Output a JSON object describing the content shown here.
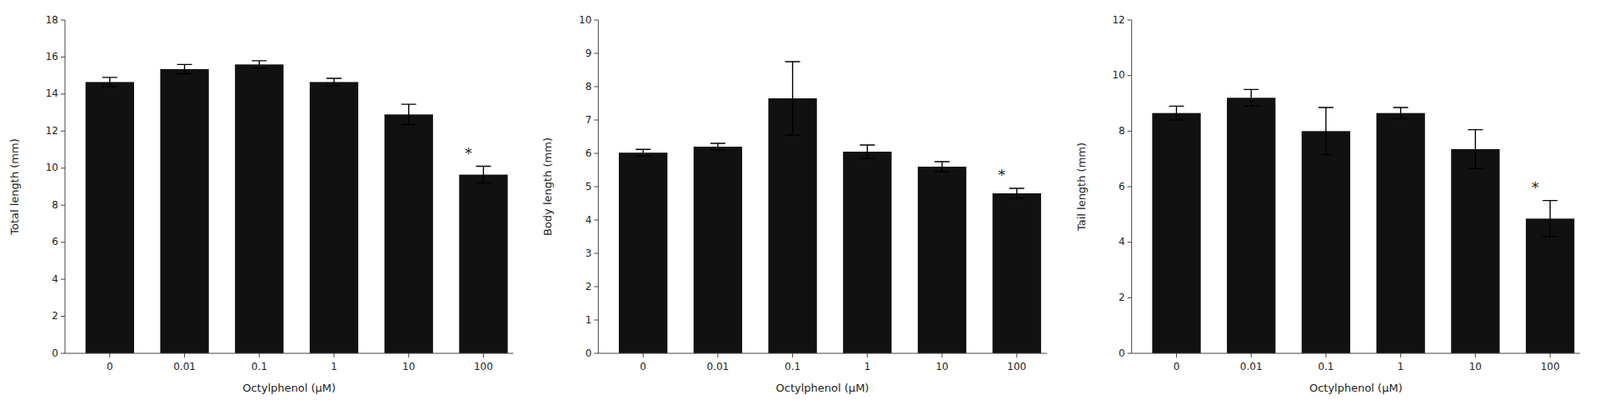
{
  "chart_data": [
    {
      "type": "bar",
      "categories": [
        "0",
        "0.01",
        "0.1",
        "1",
        "10",
        "100"
      ],
      "xlabel": "Octylphenol (μM)",
      "ylabel": "Total length (mm)",
      "color": "#111111",
      "values": [
        14.65,
        15.35,
        15.6,
        14.65,
        12.9,
        9.65
      ],
      "errors": [
        0.25,
        0.25,
        0.2,
        0.2,
        0.55,
        0.45
      ],
      "ylim": [
        0,
        18
      ],
      "yticks": [
        0,
        2,
        4,
        6,
        8,
        10,
        12,
        14,
        16,
        18
      ],
      "grid": false,
      "annotations": [
        {
          "text": "*",
          "category": "100"
        }
      ]
    },
    {
      "type": "bar",
      "categories": [
        "0",
        "0.01",
        "0.1",
        "1",
        "10",
        "100"
      ],
      "xlabel": "Octylphenol (μM)",
      "ylabel": "Body length (mm)",
      "color": "#111111",
      "values": [
        6.02,
        6.2,
        7.65,
        6.05,
        5.6,
        4.8
      ],
      "errors": [
        0.1,
        0.1,
        1.1,
        0.2,
        0.15,
        0.15
      ],
      "ylim": [
        0,
        10
      ],
      "yticks": [
        0,
        1,
        2,
        3,
        4,
        5,
        6,
        7,
        8,
        9,
        10
      ],
      "grid": false,
      "annotations": [
        {
          "text": "*",
          "category": "100"
        }
      ]
    },
    {
      "type": "bar",
      "categories": [
        "0",
        "0.01",
        "0.1",
        "1",
        "10",
        "100"
      ],
      "xlabel": "Octylphenol (μM)",
      "ylabel": "Tail length (mm)",
      "color": "#111111",
      "values": [
        8.65,
        9.2,
        8.0,
        8.65,
        7.35,
        4.85
      ],
      "errors": [
        0.25,
        0.3,
        0.85,
        0.2,
        0.7,
        0.65
      ],
      "ylim": [
        0,
        12
      ],
      "yticks": [
        0,
        2,
        4,
        6,
        8,
        10,
        12
      ],
      "grid": false,
      "annotations": [
        {
          "text": "*",
          "category": "100"
        }
      ]
    }
  ]
}
